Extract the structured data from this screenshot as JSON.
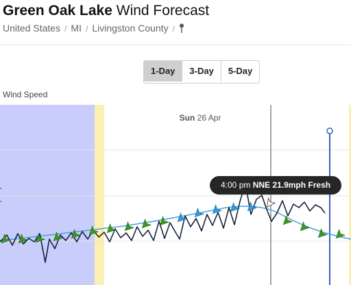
{
  "page": {
    "title_bold": "Green Oak Lake",
    "title_rest": " Wind Forecast"
  },
  "breadcrumb": {
    "items": [
      "United States",
      "MI",
      "Livingston County"
    ],
    "separator": "/"
  },
  "range_buttons": {
    "options": [
      "1-Day",
      "3-Day",
      "5-Day"
    ],
    "selected": "1-Day"
  },
  "chart_data": {
    "type": "line",
    "series_label": "Wind Speed",
    "date_label_day": "Sun",
    "date_label_date": "26 Apr",
    "tooltip": {
      "time": "4:00 pm",
      "direction": "NNE",
      "speed": "21.9mph",
      "rating": "Fresh"
    },
    "colors": {
      "night": "#c8cdfb",
      "twilight": "#fbf0b2",
      "line": "#14223a",
      "avg_line": "#4aa0dc",
      "arrow_green": "#3a9a1e",
      "arrow_blue": "#2c9ee0",
      "now_line": "#3560bd"
    }
  }
}
